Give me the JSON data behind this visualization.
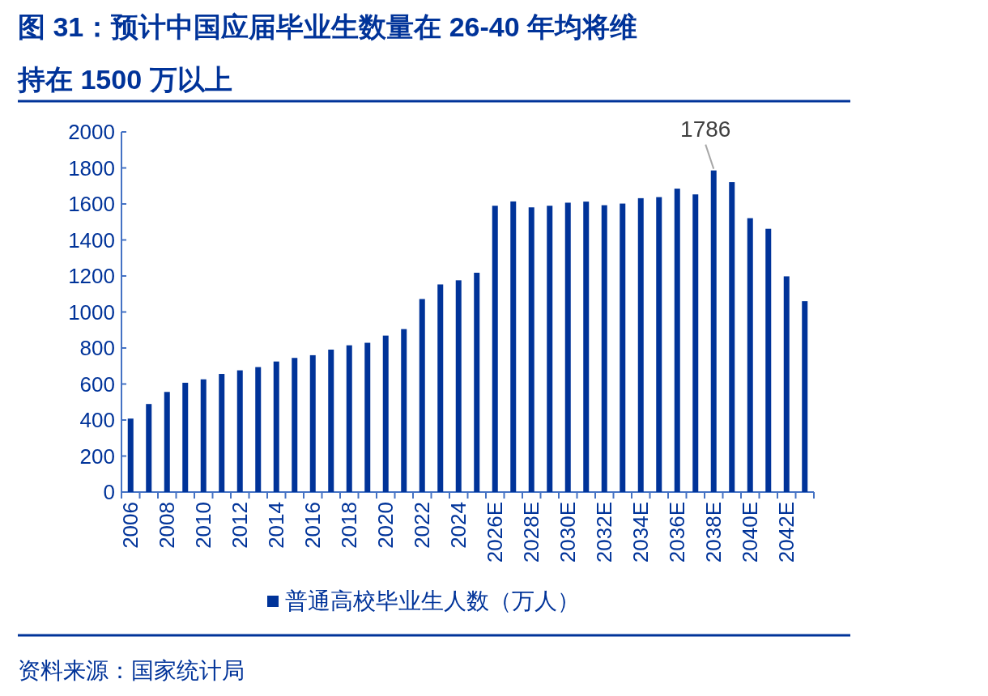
{
  "chart_data": {
    "type": "bar",
    "title": "图 31：预计中国应届毕业生数量在 26-40 年均将维持在 1500 万以上",
    "categories": [
      "2006",
      null,
      "2008",
      null,
      "2010",
      null,
      "2012",
      null,
      "2014",
      null,
      "2016",
      null,
      "2018",
      null,
      "2020",
      null,
      "2022",
      null,
      "2024",
      null,
      "2026E",
      null,
      "2028E",
      null,
      "2030E",
      null,
      "2032E",
      null,
      "2034E",
      null,
      "2036E",
      null,
      "2038E",
      null,
      "2040E",
      null,
      "2042E",
      null
    ],
    "series": [
      {
        "name": "普通高校毕业生人数（万人）",
        "color": "#003399",
        "values": [
          408,
          489,
          556,
          607,
          626,
          656,
          676,
          694,
          725,
          745,
          760,
          791,
          815,
          829,
          869,
          905,
          1072,
          1153,
          1176,
          1218,
          1590,
          1614,
          1581,
          1590,
          1607,
          1613,
          1593,
          1602,
          1632,
          1638,
          1685,
          1653,
          1786,
          1721,
          1521,
          1462,
          1198,
          1060
        ]
      }
    ],
    "ylim": [
      0,
      2000
    ],
    "yticks": [
      0,
      200,
      400,
      600,
      800,
      1000,
      1200,
      1400,
      1600,
      1800,
      2000
    ],
    "legend": "bottom",
    "annotations": [
      {
        "text": "1786",
        "x": "2038E",
        "y": 1786
      },
      "资料来源：国家统计局"
    ]
  }
}
